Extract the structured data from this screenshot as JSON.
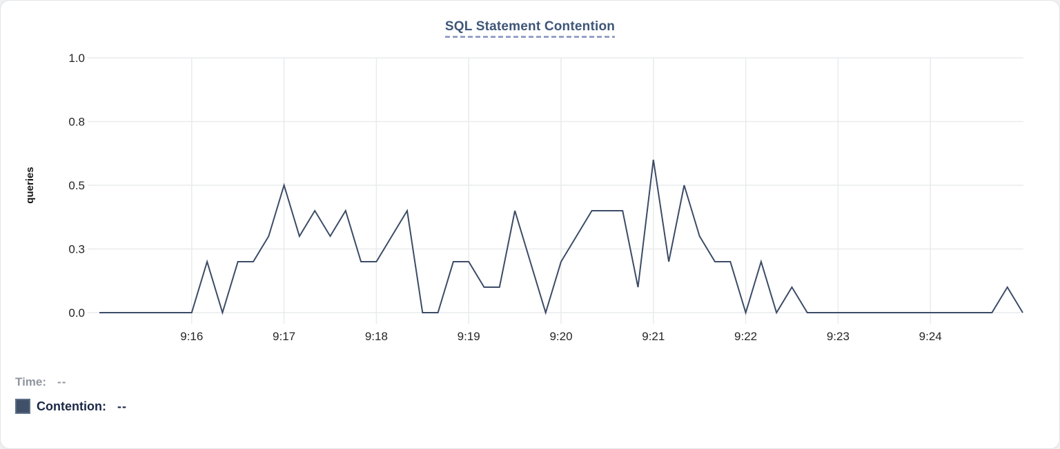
{
  "page": {
    "background": "#eef0f2",
    "card_background": "#ffffff"
  },
  "chart": {
    "title": "SQL Statement Contention",
    "ylabel": "queries"
  },
  "legend": {
    "time_label": "Time:",
    "time_value": "--",
    "series_label": "Contention:",
    "series_value": "--",
    "swatch_color": "#3f5068"
  },
  "chart_data": {
    "type": "line",
    "title": "SQL Statement Contention",
    "xlabel": "",
    "ylabel": "queries",
    "ylim": [
      0,
      1.0
    ],
    "grid": true,
    "legend_position": "bottom-left",
    "line_color": "#3b4b66",
    "y_ticks": [
      {
        "value": 1.0,
        "label": "1.0"
      },
      {
        "value": 0.75,
        "label": "0.8"
      },
      {
        "value": 0.5,
        "label": "0.5"
      },
      {
        "value": 0.25,
        "label": "0.3"
      },
      {
        "value": 0.0,
        "label": "0.0"
      }
    ],
    "x_tick_labels": [
      "9:16",
      "9:17",
      "9:18",
      "9:19",
      "9:20",
      "9:21",
      "9:22",
      "9:23",
      "9:24"
    ],
    "x_tick_first_index": 6,
    "x_tick_step": 6,
    "x": [
      "9:15:00",
      "9:15:10",
      "9:15:20",
      "9:15:30",
      "9:15:40",
      "9:15:50",
      "9:16:00",
      "9:16:10",
      "9:16:20",
      "9:16:30",
      "9:16:40",
      "9:16:50",
      "9:17:00",
      "9:17:10",
      "9:17:20",
      "9:17:30",
      "9:17:40",
      "9:17:50",
      "9:18:00",
      "9:18:10",
      "9:18:20",
      "9:18:30",
      "9:18:40",
      "9:18:50",
      "9:19:00",
      "9:19:10",
      "9:19:20",
      "9:19:30",
      "9:19:40",
      "9:19:50",
      "9:20:00",
      "9:20:10",
      "9:20:20",
      "9:20:30",
      "9:20:40",
      "9:20:50",
      "9:21:00",
      "9:21:10",
      "9:21:20",
      "9:21:30",
      "9:21:40",
      "9:21:50",
      "9:22:00",
      "9:22:10",
      "9:22:20",
      "9:22:30",
      "9:22:40",
      "9:22:50",
      "9:23:00",
      "9:23:10",
      "9:23:20",
      "9:23:30",
      "9:23:40",
      "9:23:50",
      "9:24:00",
      "9:24:10",
      "9:24:20",
      "9:24:30",
      "9:24:40",
      "9:24:50",
      "9:25:00"
    ],
    "series": [
      {
        "name": "Contention",
        "values": [
          0,
          0,
          0,
          0,
          0,
          0,
          0,
          0.2,
          0,
          0.2,
          0.2,
          0.3,
          0.5,
          0.3,
          0.4,
          0.3,
          0.4,
          0.2,
          0.2,
          0.3,
          0.4,
          0,
          0,
          0.2,
          0.2,
          0.1,
          0.1,
          0.4,
          0.2,
          0,
          0.2,
          0.3,
          0.4,
          0.4,
          0.4,
          0.1,
          0.6,
          0.2,
          0.5,
          0.3,
          0.2,
          0.2,
          0,
          0.2,
          0,
          0.1,
          0,
          0,
          0,
          0,
          0,
          0,
          0,
          0,
          0,
          0,
          0,
          0,
          0,
          0.1,
          0
        ]
      }
    ]
  }
}
